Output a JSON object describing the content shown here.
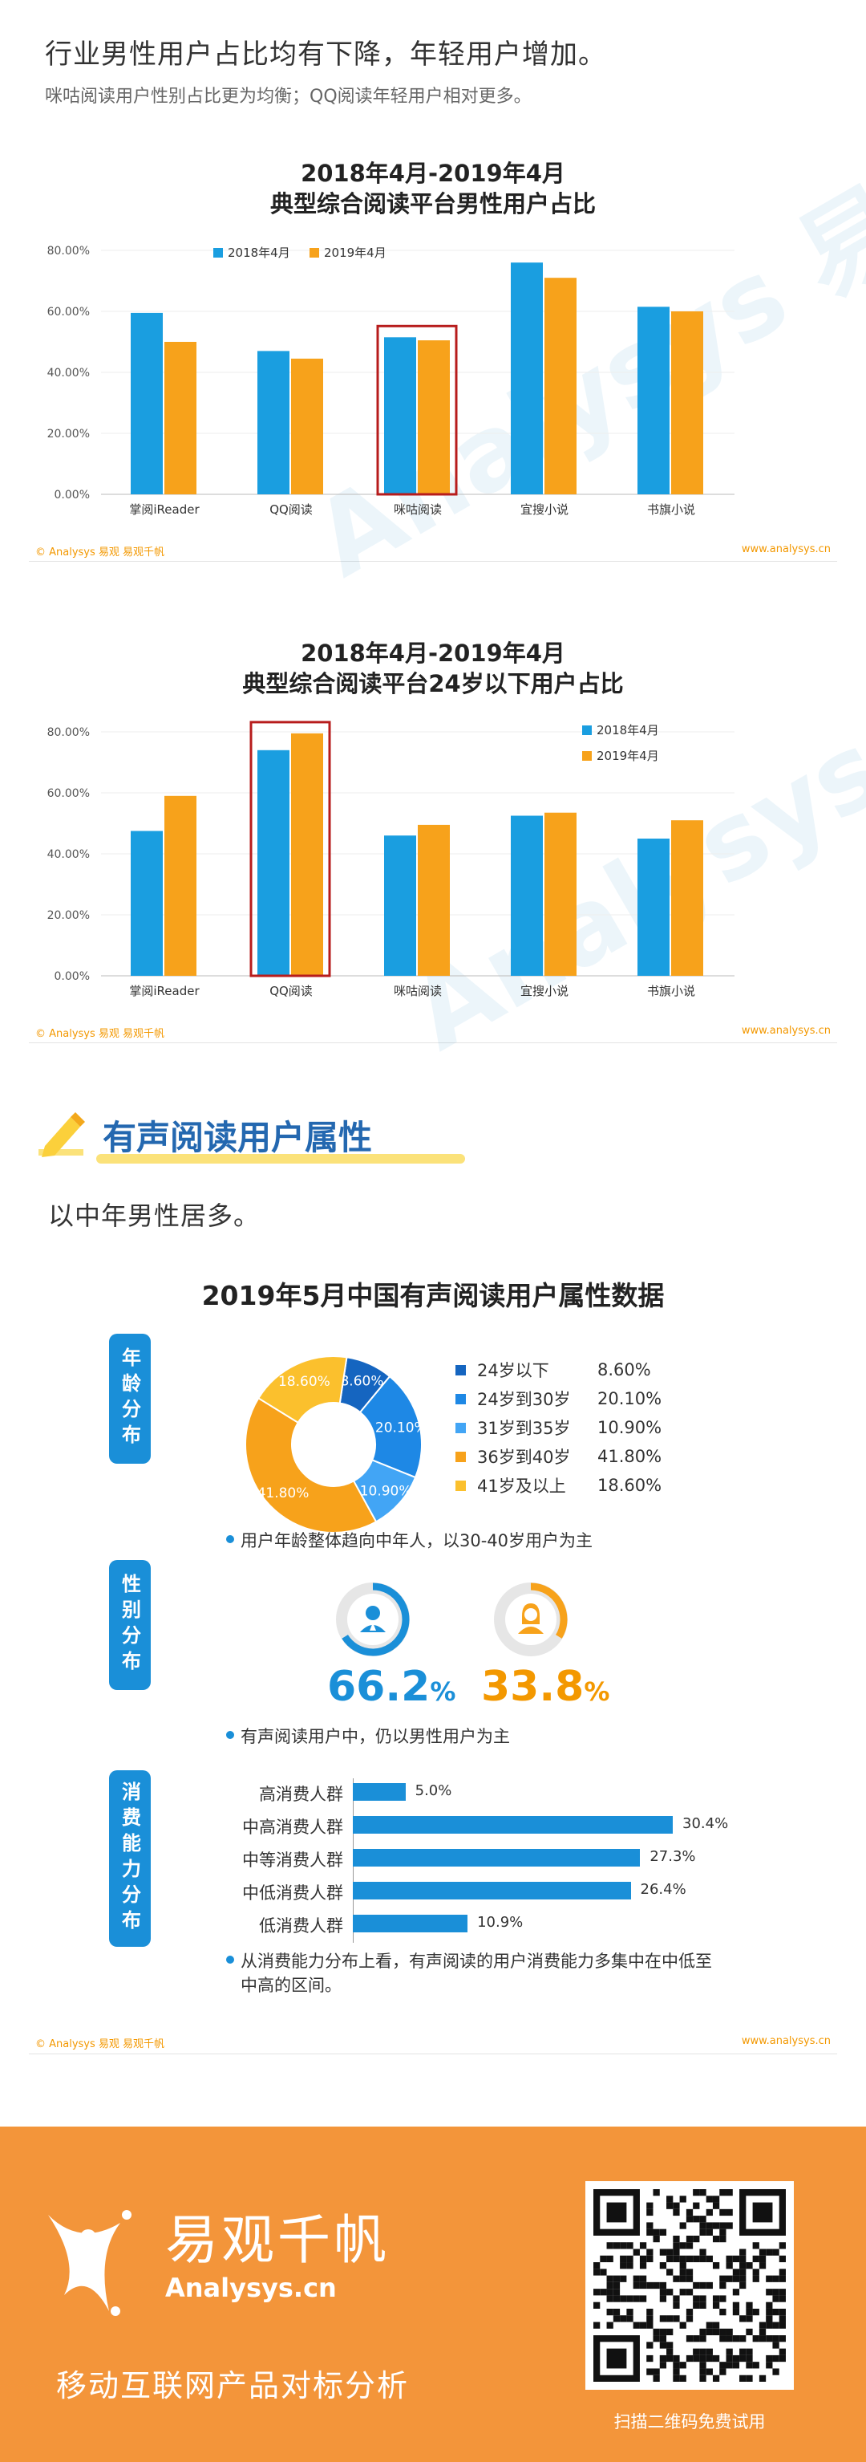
{
  "intro": {
    "headline": "行业男性用户占比均有下降，年轻用户增加。",
    "subline": "咪咕阅读用户性别占比更为均衡；QQ阅读年轻用户相对更多。"
  },
  "footer": {
    "left": "© Analysys 易观   易观千帆",
    "right": "www.analysys.cn"
  },
  "watermark_text": "Analysys 易观",
  "colors": {
    "series1": "#1a9ee0",
    "series2": "#f7a21b",
    "highlight": "#b71c1c",
    "accent": "#2468b0",
    "brand_orange": "#f3953a"
  },
  "chart_data": [
    {
      "type": "bar",
      "title_line1": "2018年4月-2019年4月",
      "title_line2": "典型综合阅读平台男性用户占比",
      "categories": [
        "掌阅iReader",
        "QQ阅读",
        "咪咕阅读",
        "宜搜小说",
        "书旗小说"
      ],
      "series": [
        {
          "name": "2018年4月",
          "values": [
            59.5,
            47.0,
            51.5,
            76.0,
            61.5
          ]
        },
        {
          "name": "2019年4月",
          "values": [
            50.0,
            44.5,
            50.5,
            71.0,
            60.0
          ]
        }
      ],
      "yticks": [
        "0.00%",
        "20.00%",
        "40.00%",
        "60.00%",
        "80.00%"
      ],
      "ylim": [
        0,
        80
      ],
      "highlight_index": 2,
      "legend": "top-left"
    },
    {
      "type": "bar",
      "title_line1": "2018年4月-2019年4月",
      "title_line2": "典型综合阅读平台24岁以下用户占比",
      "categories": [
        "掌阅iReader",
        "QQ阅读",
        "咪咕阅读",
        "宜搜小说",
        "书旗小说"
      ],
      "series": [
        {
          "name": "2018年4月",
          "values": [
            47.5,
            74.0,
            46.0,
            52.5,
            45.0
          ]
        },
        {
          "name": "2019年4月",
          "values": [
            59.0,
            79.5,
            49.5,
            53.5,
            51.0
          ]
        }
      ],
      "yticks": [
        "0.00%",
        "20.00%",
        "40.00%",
        "60.00%",
        "80.00%"
      ],
      "ylim": [
        0,
        80
      ],
      "highlight_index": 1,
      "legend": "top-right"
    },
    {
      "type": "pie",
      "labels": [
        "24岁以下",
        "24岁到30岁",
        "31岁到35岁",
        "36岁到40岁",
        "41岁及以上"
      ],
      "values": [
        8.6,
        20.1,
        10.9,
        41.8,
        18.6
      ],
      "value_labels": [
        "8.60%",
        "20.10%",
        "10.90%",
        "41.80%",
        "18.60%"
      ],
      "colors": [
        "#1565c0",
        "#1e88e5",
        "#42a5f5",
        "#f7a21b",
        "#fbc02d"
      ]
    },
    {
      "type": "bar",
      "orientation": "horizontal",
      "categories": [
        "高消费人群",
        "中高消费人群",
        "中等消费人群",
        "中低消费人群",
        "低消费人群"
      ],
      "values": [
        5.0,
        30.4,
        27.3,
        26.4,
        10.9
      ],
      "value_labels": [
        "5.0%",
        "30.4%",
        "27.3%",
        "26.4%",
        "10.9%"
      ],
      "xlim": [
        0,
        32
      ]
    }
  ],
  "section": {
    "title": "有声阅读用户属性",
    "intro": "以中年男性居多。",
    "chart_title": "2019年5月中国有声阅读用户属性数据",
    "tabs": {
      "age": "年龄分布",
      "gender": "性别分布",
      "consume": "消费能力分布"
    },
    "age_note": "用户年龄整体趋向中年人，以30-40岁用户为主",
    "gender": {
      "male_pct": "66.2",
      "female_pct": "33.8",
      "unit": "%",
      "male_value": 66.2,
      "female_value": 33.8
    },
    "gender_note": "有声阅读用户中，仍以男性用户为主",
    "consume_note_line1": "从消费能力分布上看，有声阅读的用户消费能力多集中在中低至",
    "consume_note_line2": "中高的区间。"
  },
  "brand": {
    "name_cn": "易观千帆",
    "name_en": "Analysys.cn",
    "slogan": "移动互联网产品对标分析",
    "qr_caption": "扫描二维码免费试用"
  }
}
